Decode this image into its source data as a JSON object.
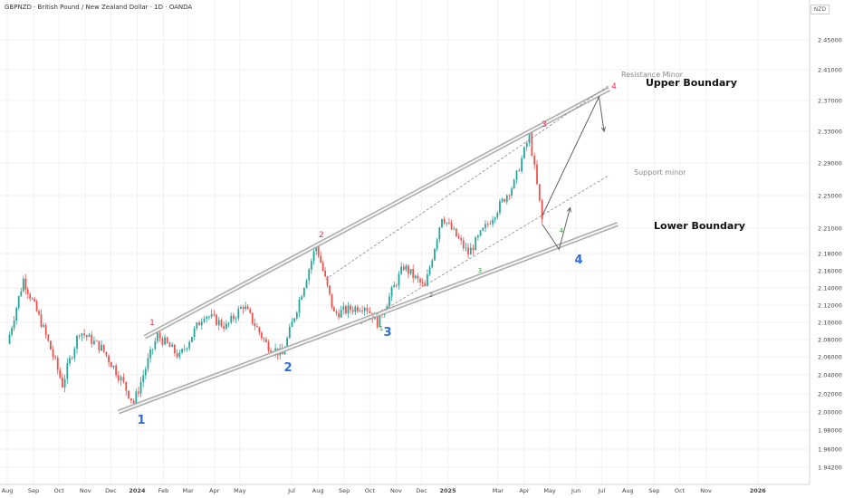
{
  "header": {
    "title": "GBPNZD · British Pound / New Zealand Dollar · 1D · OANDA",
    "currency": "NZD"
  },
  "colors": {
    "up": "#26a69a",
    "down": "#ef5350",
    "wave_red": "#e8334a",
    "wave_blue": "#2f6fd6",
    "wave_green": "#3a9a3a",
    "channel": "#9e9e9e"
  },
  "chart_data": {
    "type": "candlestick",
    "title": "GBPNZD · British Pound / New Zealand Dollar · 1D · OANDA",
    "ylim": [
      1.93,
      2.47
    ],
    "y_ticks": [
      "2.45000",
      "2.41000",
      "2.37000",
      "2.33000",
      "2.29000",
      "2.25000",
      "2.21000",
      "2.18000",
      "2.16000",
      "2.14000",
      "2.12000",
      "2.10000",
      "2.08000",
      "2.06000",
      "2.04000",
      "2.02000",
      "2.00000",
      "1.98000",
      "1.96000",
      "1.94200"
    ],
    "x_ticks": [
      "Aug",
      "Sep",
      "Oct",
      "Nov",
      "Dec",
      "2024",
      "Feb",
      "Mar",
      "Apr",
      "May",
      "Jul",
      "Aug",
      "Sep",
      "Oct",
      "Nov",
      "Dec",
      "2025",
      "Mar",
      "Apr",
      "May",
      "Jun",
      "Jul",
      "Aug",
      "Sep",
      "Oct",
      "Nov",
      "2026"
    ],
    "price_path": [
      [
        "2023-08-01",
        2.075
      ],
      [
        "2023-08-20",
        2.15
      ],
      [
        "2023-09-10",
        2.1
      ],
      [
        "2023-10-05",
        2.03
      ],
      [
        "2023-10-25",
        2.09
      ],
      [
        "2023-11-20",
        2.07
      ],
      [
        "2023-12-10",
        2.04
      ],
      [
        "2023-12-28",
        2.01
      ],
      [
        "2024-01-25",
        2.085
      ],
      [
        "2024-02-20",
        2.06
      ],
      [
        "2024-03-20",
        2.11
      ],
      [
        "2024-04-15",
        2.095
      ],
      [
        "2024-05-05",
        2.12
      ],
      [
        "2024-06-01",
        2.075
      ],
      [
        "2024-06-20",
        2.062
      ],
      [
        "2024-07-30",
        2.19
      ],
      [
        "2024-08-20",
        2.11
      ],
      [
        "2024-09-25",
        2.12
      ],
      [
        "2024-10-10",
        2.1
      ],
      [
        "2024-11-10",
        2.165
      ],
      [
        "2024-12-05",
        2.14
      ],
      [
        "2024-12-25",
        2.225
      ],
      [
        "2025-01-25",
        2.18
      ],
      [
        "2025-02-20",
        2.22
      ],
      [
        "2025-03-20",
        2.265
      ],
      [
        "2025-04-07",
        2.325
      ],
      [
        "2025-04-22",
        2.22
      ]
    ],
    "channel_lines": [
      {
        "name": "Upper Boundary",
        "from": [
          "2024-01-10",
          2.083
        ],
        "to": [
          "2025-07-10",
          2.385
        ]
      },
      {
        "name": "Lower Boundary",
        "from": [
          "2023-12-10",
          2.0
        ],
        "to": [
          "2025-07-20",
          2.215
        ]
      }
    ],
    "dashed_lines": [
      {
        "name": "Resistance Minor",
        "from": [
          "2024-08-10",
          2.15
        ],
        "to": [
          "2025-07-10",
          2.39
        ]
      },
      {
        "name": "Support minor",
        "from": [
          "2024-09-20",
          2.098
        ],
        "to": [
          "2025-07-10",
          2.275
        ]
      }
    ],
    "projection_arrows": [
      {
        "points": [
          [
            "2025-04-22",
            2.225
          ],
          [
            "2025-06-28",
            2.375
          ],
          [
            "2025-07-04",
            2.33
          ]
        ]
      },
      {
        "points": [
          [
            "2025-04-22",
            2.215
          ],
          [
            "2025-05-12",
            2.185
          ],
          [
            "2025-05-25",
            2.235
          ]
        ]
      }
    ]
  },
  "annotations": {
    "upper_boundary": "Upper Boundary",
    "lower_boundary": "Lower Boundary",
    "resistance_minor": "Resistance Minor",
    "support_minor": "Support minor",
    "red_waves": [
      "1",
      "2",
      "3",
      "4"
    ],
    "blue_waves": [
      "1",
      "2",
      "3",
      "4"
    ],
    "green_waves": [
      "1",
      "2",
      "3",
      "4"
    ]
  }
}
